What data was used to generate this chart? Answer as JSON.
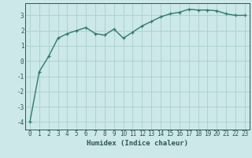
{
  "x": [
    0,
    1,
    2,
    3,
    4,
    5,
    6,
    7,
    8,
    9,
    10,
    11,
    12,
    13,
    14,
    15,
    16,
    17,
    18,
    19,
    20,
    21,
    22,
    23
  ],
  "y": [
    -4.0,
    -0.7,
    0.3,
    1.5,
    1.8,
    2.0,
    2.2,
    1.8,
    1.7,
    2.1,
    1.5,
    1.9,
    2.3,
    2.6,
    2.9,
    3.1,
    3.2,
    3.4,
    3.35,
    3.35,
    3.3,
    3.1,
    3.0,
    3.0
  ],
  "line_color": "#2e7b6e",
  "marker": "+",
  "marker_size": 3,
  "bg_color": "#cce8e8",
  "grid_color": "#aacece",
  "xlabel": "Humidex (Indice chaleur)",
  "xlim": [
    -0.5,
    23.5
  ],
  "ylim": [
    -4.5,
    3.8
  ],
  "yticks": [
    -4,
    -3,
    -2,
    -1,
    0,
    1,
    2,
    3
  ],
  "xticks": [
    0,
    1,
    2,
    3,
    4,
    5,
    6,
    7,
    8,
    9,
    10,
    11,
    12,
    13,
    14,
    15,
    16,
    17,
    18,
    19,
    20,
    21,
    22,
    23
  ],
  "font_color": "#2e5555",
  "linewidth": 1.0,
  "xlabel_fontsize": 6.5,
  "tick_fontsize": 5.5
}
